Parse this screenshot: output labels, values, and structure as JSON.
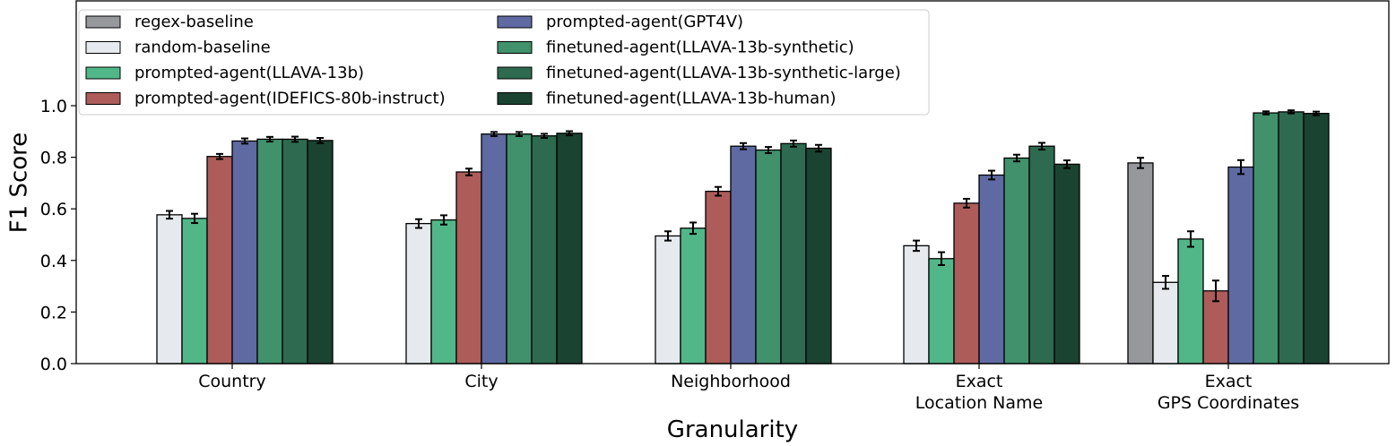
{
  "chart_data": {
    "type": "bar",
    "title": "",
    "xlabel": "Granularity",
    "ylabel": "F1 Score",
    "ylim": [
      0,
      1.4
    ],
    "yticks": [
      "0.0",
      "0.2",
      "0.4",
      "0.6",
      "0.8",
      "1.0"
    ],
    "legend_position": "top-left",
    "categories": [
      [
        "Country"
      ],
      [
        "City"
      ],
      [
        "Neighborhood"
      ],
      [
        "Exact",
        "Location Name"
      ],
      [
        "Exact",
        "GPS Coordinates"
      ]
    ],
    "series": [
      {
        "name": "regex-baseline",
        "color": "#97989b",
        "values": [
          0,
          0,
          0,
          0,
          0.778
        ],
        "errors": [
          0,
          0,
          0,
          0,
          0.02
        ]
      },
      {
        "name": "random-baseline",
        "color": "#e6eaee",
        "values": [
          0.577,
          0.543,
          0.495,
          0.457,
          0.315
        ],
        "errors": [
          0.015,
          0.017,
          0.018,
          0.02,
          0.025
        ]
      },
      {
        "name": "prompted-agent(LLAVA-13b)",
        "color": "#52b788",
        "values": [
          0.563,
          0.557,
          0.525,
          0.407,
          0.483
        ],
        "errors": [
          0.018,
          0.018,
          0.022,
          0.025,
          0.03
        ]
      },
      {
        "name": "prompted-agent(IDEFICS-80b-instruct)",
        "color": "#ad5c5a",
        "values": [
          0.803,
          0.743,
          0.668,
          0.622,
          0.282
        ],
        "errors": [
          0.01,
          0.013,
          0.017,
          0.017,
          0.04
        ]
      },
      {
        "name": "prompted-agent(GPT4V)",
        "color": "#5f6aa2",
        "values": [
          0.863,
          0.89,
          0.843,
          0.731,
          0.762
        ],
        "errors": [
          0.01,
          0.008,
          0.012,
          0.017,
          0.027
        ]
      },
      {
        "name": "finetuned-agent(LLAVA-13b-synthetic)",
        "color": "#40916c",
        "values": [
          0.87,
          0.89,
          0.828,
          0.797,
          0.972
        ],
        "errors": [
          0.009,
          0.008,
          0.012,
          0.013,
          0.006
        ]
      },
      {
        "name": "finetuned-agent(LLAVA-13b-synthetic-large)",
        "color": "#2d6a4f",
        "values": [
          0.87,
          0.883,
          0.853,
          0.843,
          0.976
        ],
        "errors": [
          0.01,
          0.008,
          0.012,
          0.013,
          0.006
        ]
      },
      {
        "name": "finetuned-agent(LLAVA-13b-human)",
        "color": "#1b4332",
        "values": [
          0.865,
          0.893,
          0.835,
          0.773,
          0.97
        ],
        "errors": [
          0.01,
          0.008,
          0.013,
          0.015,
          0.007
        ]
      }
    ]
  }
}
